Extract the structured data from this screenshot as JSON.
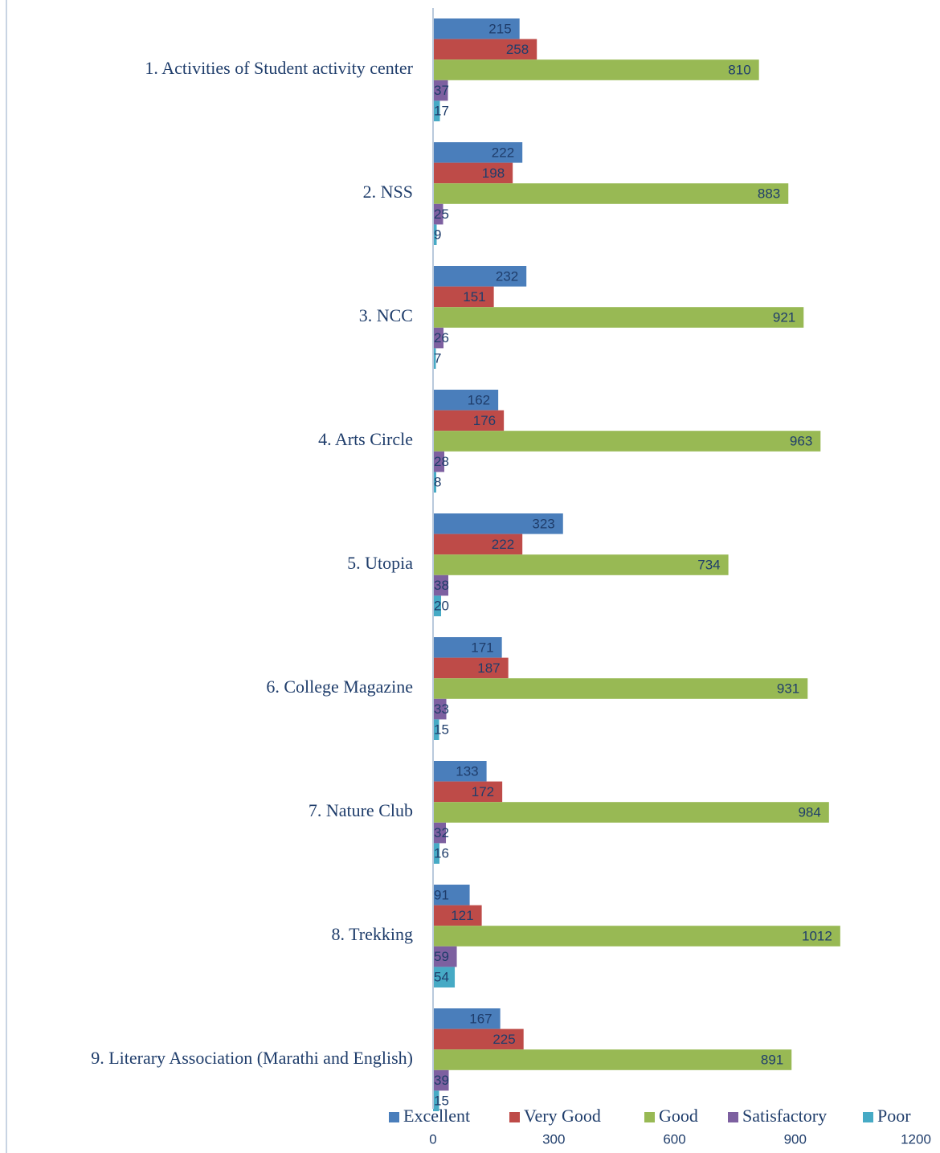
{
  "chart_data": {
    "type": "bar",
    "orientation": "horizontal",
    "categories": [
      "1. Activities of Student activity center",
      "2. NSS",
      "3. NCC",
      "4. Arts Circle",
      "5. Utopia",
      "6. College Magazine",
      "7. Nature Club",
      "8. Trekking",
      "9. Literary Association (Marathi and English)"
    ],
    "series": [
      {
        "name": "Excellent",
        "color": "#4a7ebb",
        "values": [
          215,
          222,
          232,
          162,
          323,
          171,
          133,
          91,
          167
        ]
      },
      {
        "name": "Very Good",
        "color": "#be4b48",
        "values": [
          258,
          198,
          151,
          176,
          222,
          187,
          172,
          121,
          225
        ]
      },
      {
        "name": "Good",
        "color": "#98b954",
        "values": [
          810,
          883,
          921,
          963,
          734,
          931,
          984,
          1012,
          891
        ]
      },
      {
        "name": "Satisfactory",
        "color": "#7d60a0",
        "values": [
          37,
          25,
          26,
          28,
          38,
          33,
          32,
          59,
          39
        ]
      },
      {
        "name": "Poor",
        "color": "#46aac5",
        "values": [
          17,
          9,
          7,
          8,
          20,
          15,
          16,
          54,
          15
        ]
      }
    ],
    "xlim": [
      0,
      1200
    ],
    "xticks": [
      0,
      300,
      600,
      900,
      1200
    ],
    "grid": false,
    "legend": "bottom"
  }
}
